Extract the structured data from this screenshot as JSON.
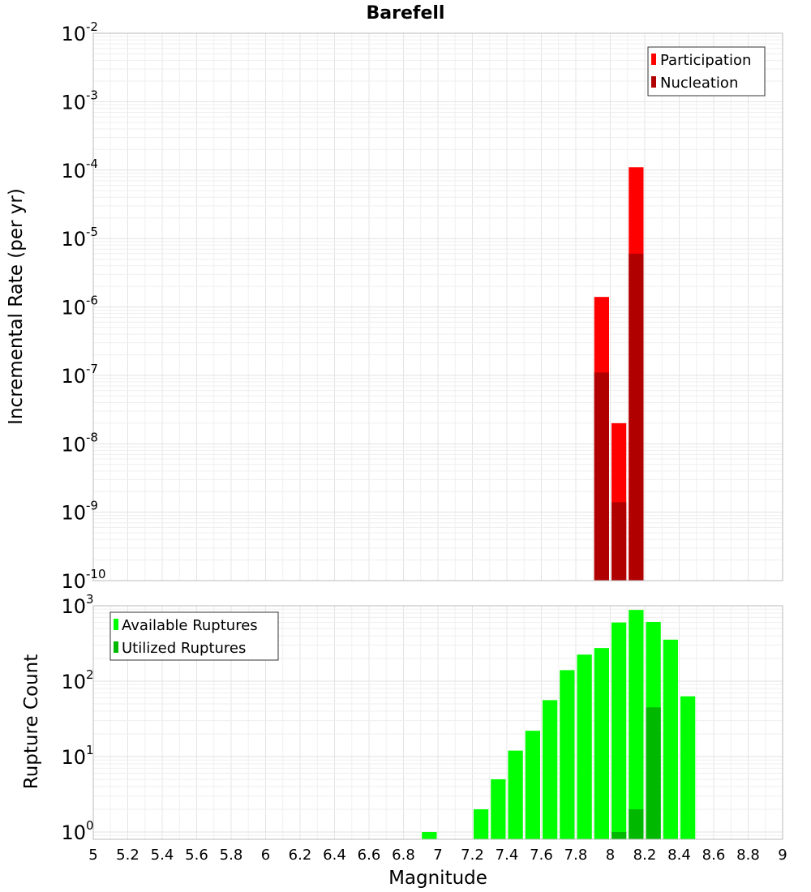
{
  "chart_data": [
    {
      "type": "bar",
      "title": "Barefell",
      "ylabel": "Incremental Rate (per yr)",
      "xlabel": "",
      "scale": "log",
      "xlim": [
        5,
        9
      ],
      "ylim": [
        1e-10,
        0.01
      ],
      "bin_width": 0.1,
      "grid": true,
      "legend_placement": "top-right",
      "y_ticks": [
        {
          "base": "10",
          "exp": "-10",
          "value": 1e-10
        },
        {
          "base": "10",
          "exp": "-9",
          "value": 1e-09
        },
        {
          "base": "10",
          "exp": "-8",
          "value": 1e-08
        },
        {
          "base": "10",
          "exp": "-7",
          "value": 1e-07
        },
        {
          "base": "10",
          "exp": "-6",
          "value": 1e-06
        },
        {
          "base": "10",
          "exp": "-5",
          "value": 1e-05
        },
        {
          "base": "10",
          "exp": "-4",
          "value": 0.0001
        },
        {
          "base": "10",
          "exp": "-3",
          "value": 0.001
        },
        {
          "base": "10",
          "exp": "-2",
          "value": 0.01
        }
      ],
      "series": [
        {
          "name": "Participation",
          "color": "#ff0000",
          "points": [
            {
              "x": 7.95,
              "y": 1.4e-06
            },
            {
              "x": 8.05,
              "y": 2e-08
            },
            {
              "x": 8.15,
              "y": 0.00011
            }
          ]
        },
        {
          "name": "Nucleation",
          "color": "#b00000",
          "points": [
            {
              "x": 7.95,
              "y": 1.1e-07
            },
            {
              "x": 8.05,
              "y": 1.4e-09
            },
            {
              "x": 8.15,
              "y": 6e-06
            }
          ]
        }
      ]
    },
    {
      "type": "bar",
      "title": "",
      "ylabel": "Rupture Count",
      "xlabel": "Magnitude",
      "scale": "log",
      "xlim": [
        5,
        9
      ],
      "ylim": [
        0.8,
        1000
      ],
      "bin_width": 0.1,
      "grid": true,
      "legend_placement": "top-left",
      "x_ticks": [
        "5",
        "5.2",
        "5.4",
        "5.6",
        "5.8",
        "6",
        "6.2",
        "6.4",
        "6.6",
        "6.8",
        "7",
        "7.2",
        "7.4",
        "7.6",
        "7.8",
        "8",
        "8.2",
        "8.4",
        "8.6",
        "8.8",
        "9"
      ],
      "y_ticks": [
        {
          "base": "10",
          "exp": "0",
          "value": 1
        },
        {
          "base": "10",
          "exp": "1",
          "value": 10
        },
        {
          "base": "10",
          "exp": "2",
          "value": 100
        },
        {
          "base": "10",
          "exp": "3",
          "value": 1000
        }
      ],
      "series": [
        {
          "name": "Available Ruptures",
          "color": "#00ff00",
          "points": [
            {
              "x": 6.95,
              "y": 1
            },
            {
              "x": 7.25,
              "y": 2
            },
            {
              "x": 7.35,
              "y": 5
            },
            {
              "x": 7.45,
              "y": 12
            },
            {
              "x": 7.55,
              "y": 22
            },
            {
              "x": 7.65,
              "y": 56
            },
            {
              "x": 7.75,
              "y": 140
            },
            {
              "x": 7.85,
              "y": 225
            },
            {
              "x": 7.95,
              "y": 275
            },
            {
              "x": 8.05,
              "y": 600
            },
            {
              "x": 8.15,
              "y": 880
            },
            {
              "x": 8.25,
              "y": 610
            },
            {
              "x": 8.35,
              "y": 355
            },
            {
              "x": 8.45,
              "y": 63
            }
          ]
        },
        {
          "name": "Utilized Ruptures",
          "color": "#00b800",
          "points": [
            {
              "x": 8.05,
              "y": 1
            },
            {
              "x": 8.15,
              "y": 2
            },
            {
              "x": 8.25,
              "y": 45
            }
          ]
        }
      ]
    }
  ]
}
